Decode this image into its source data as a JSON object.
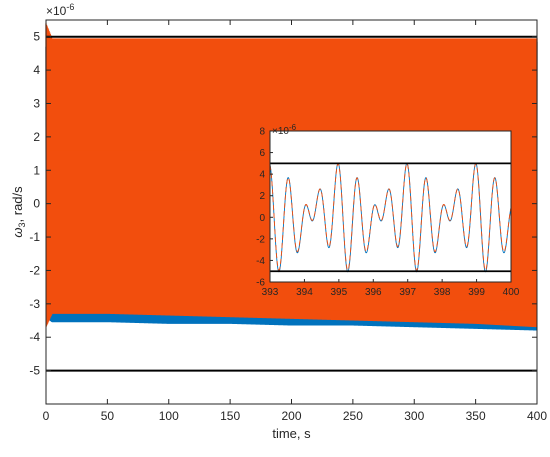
{
  "chart_data": [
    {
      "type": "line",
      "xlabel": "time, s",
      "ylabel": "ω3, rad/s",
      "ylabel_base": "ω",
      "ylabel_sub": "3",
      "ylabel_rest": ", rad/s",
      "exponent_label": "×10",
      "exponent_power": "-6",
      "xlim": [
        0,
        400
      ],
      "ylim": [
        -6,
        5.5
      ],
      "xticks": [
        "0",
        "50",
        "100",
        "150",
        "200",
        "250",
        "300",
        "350",
        "400"
      ],
      "yticks": [
        "-5",
        "-4",
        "-3",
        "-2",
        "-1",
        "0",
        "1",
        "2",
        "3",
        "4",
        "5"
      ],
      "colors": {
        "series_blue": "#0072BD",
        "series_orange": "#F24E0D",
        "bound": "#000000"
      },
      "bounds": [
        5,
        -5
      ],
      "envelope": {
        "x": [
          0,
          5,
          50,
          100,
          150,
          200,
          250,
          300,
          350,
          400
        ],
        "orange_max": [
          5.4,
          4.95,
          4.95,
          4.95,
          4.95,
          4.95,
          4.95,
          4.95,
          4.95,
          4.95
        ],
        "orange_min": [
          -3.7,
          -3.3,
          -3.3,
          -3.35,
          -3.4,
          -3.45,
          -3.5,
          -3.55,
          -3.6,
          -3.7
        ],
        "blue_max": [
          4.7,
          4.85,
          4.85,
          4.85,
          4.85,
          4.85,
          4.85,
          4.85,
          4.85,
          4.85
        ],
        "blue_min": [
          -3.4,
          -3.55,
          -3.55,
          -3.6,
          -3.6,
          -3.65,
          -3.65,
          -3.7,
          -3.75,
          -3.8
        ]
      }
    },
    {
      "type": "line",
      "xlim": [
        393,
        400
      ],
      "ylim": [
        -6,
        8
      ],
      "xticks": [
        "393",
        "394",
        "395",
        "396",
        "397",
        "398",
        "399",
        "400"
      ],
      "yticks": [
        "-6",
        "-4",
        "-2",
        "0",
        "2",
        "4",
        "6",
        "8"
      ],
      "exponent_label": "×10",
      "exponent_power": "-6",
      "bounds": [
        5,
        -5
      ],
      "signal": {
        "offset": 0.15,
        "a1": 2.7,
        "a2": 2.1,
        "a3": 0.65,
        "f1": 2.0,
        "f2": 1.5,
        "f3": 0.5
      }
    }
  ]
}
